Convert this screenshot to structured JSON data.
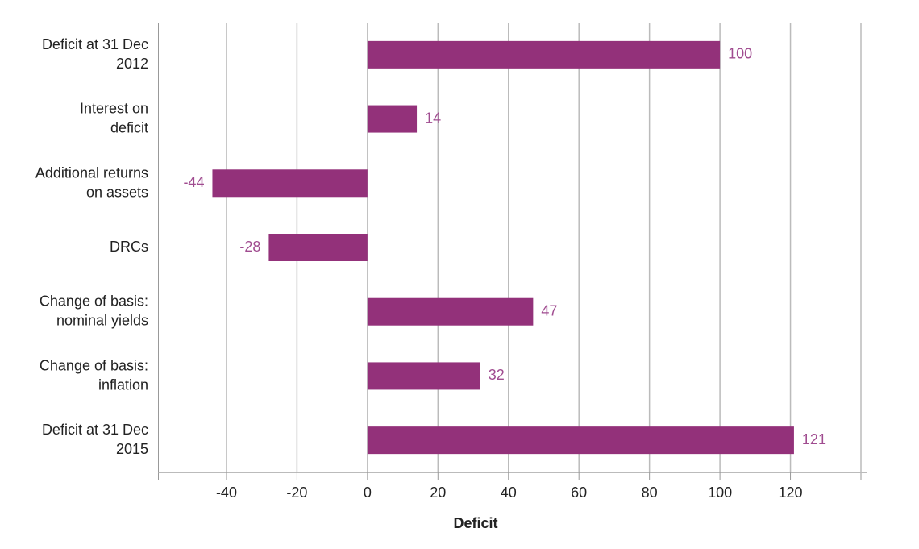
{
  "chart_data": {
    "type": "bar",
    "orientation": "horizontal",
    "categories": [
      "Deficit at 31 Dec 2012",
      "Interest on deficit",
      "Additional returns on assets",
      "DRCs",
      "Change of basis: nominal yields",
      "Change of basis: inflation",
      "Deficit at 31 Dec 2015"
    ],
    "values": [
      100,
      14,
      -44,
      -28,
      47,
      32,
      121
    ],
    "color": "#93317a",
    "x_label": "Deficit",
    "xlim": [
      -60,
      140
    ],
    "xticks": [
      -40,
      -20,
      0,
      20,
      40,
      60,
      80,
      100,
      120
    ],
    "grid": true
  }
}
